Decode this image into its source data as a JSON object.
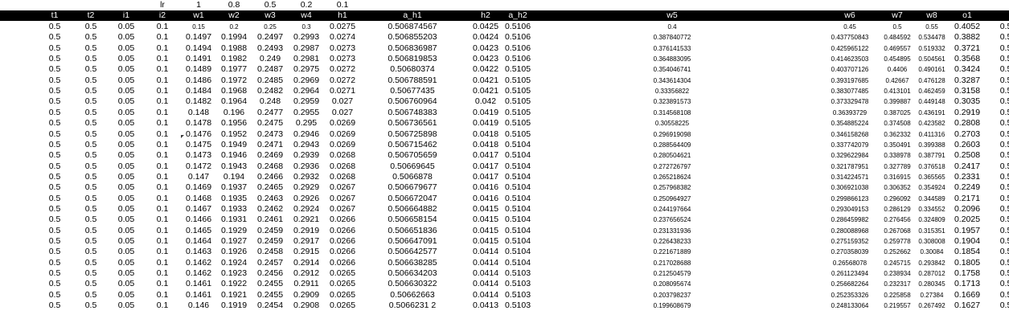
{
  "lr_row": [
    "",
    "",
    "",
    "lr",
    "1",
    "0.8",
    "0.5",
    "0.2",
    "0.1",
    "",
    "",
    "",
    "",
    "",
    "",
    "",
    ""
  ],
  "header": [
    "t1",
    "t2",
    "i1",
    "i2",
    "w1",
    "w2",
    "w3",
    "w4",
    "h1",
    "a_h1",
    "h2",
    "a_h2",
    "w5",
    "w6",
    "w7",
    "w8",
    "o1"
  ],
  "rows": [
    [
      "0.5",
      "0.5",
      "0.05",
      "0.1",
      "0.15",
      "0.2",
      "0.25",
      "0.3",
      "0.0275",
      "0.506874567",
      "0.0425",
      "0.5106",
      "0.4",
      "0.45",
      "0.5",
      "0.55",
      "0.4052"
    ],
    [
      "0.5",
      "0.5",
      "0.05",
      "0.1",
      "0.1497",
      "0.1994",
      "0.2497",
      "0.2993",
      "0.0274",
      "0.506855203",
      "0.0424",
      "0.5106",
      "0.387840772",
      "0.437750843",
      "0.484592",
      "0.534478",
      "0.3882"
    ],
    [
      "0.5",
      "0.5",
      "0.05",
      "0.1",
      "0.1494",
      "0.1988",
      "0.2493",
      "0.2987",
      "0.0273",
      "0.506836987",
      "0.0423",
      "0.5106",
      "0.376141533",
      "0.425965122",
      "0.469557",
      "0.519332",
      "0.3721"
    ],
    [
      "0.5",
      "0.5",
      "0.05",
      "0.1",
      "0.1491",
      "0.1982",
      "0.249",
      "0.2981",
      "0.0273",
      "0.506819853",
      "0.0423",
      "0.5106",
      "0.364883095",
      "0.414623503",
      "0.454895",
      "0.504561",
      "0.3568"
    ],
    [
      "0.5",
      "0.5",
      "0.05",
      "0.1",
      "0.1489",
      "0.1977",
      "0.2487",
      "0.2975",
      "0.0272",
      "0.50680374",
      "0.0422",
      "0.5105",
      "0.354046741",
      "0.403707126",
      "0.4406",
      "0.490161",
      "0.3424"
    ],
    [
      "0.5",
      "0.5",
      "0.05",
      "0.1",
      "0.1486",
      "0.1972",
      "0.2485",
      "0.2969",
      "0.0272",
      "0.506788591",
      "0.0421",
      "0.5105",
      "0.343614304",
      "0.393197685",
      "0.42667",
      "0.476128",
      "0.3287"
    ],
    [
      "0.5",
      "0.5",
      "0.05",
      "0.1",
      "0.1484",
      "0.1968",
      "0.2482",
      "0.2964",
      "0.0271",
      "0.50677435",
      "0.0421",
      "0.5105",
      "0.33356822",
      "0.383077485",
      "0.413101",
      "0.462459",
      "0.3158"
    ],
    [
      "0.5",
      "0.5",
      "0.05",
      "0.1",
      "0.1482",
      "0.1964",
      "0.248",
      "0.2959",
      "0.027",
      "0.506760964",
      "0.042",
      "0.5105",
      "0.323891573",
      "0.373329478",
      "0.399887",
      "0.449148",
      "0.3035"
    ],
    [
      "0.5",
      "0.5",
      "0.05",
      "0.1",
      "0.148",
      "0.196",
      "0.2477",
      "0.2955",
      "0.027",
      "0.506748383",
      "0.0419",
      "0.5105",
      "0.314568108",
      "0.36393729",
      "0.387025",
      "0.436191",
      "0.2919"
    ],
    [
      "0.5",
      "0.5",
      "0.05",
      "0.1",
      "0.1478",
      "0.1956",
      "0.2475",
      "0.295",
      "0.0269",
      "0.506736561",
      "0.0419",
      "0.5105",
      "0.30558225",
      "0.354885224",
      "0.374508",
      "0.423582",
      "0.2808"
    ],
    [
      "0.5",
      "0.5",
      "0.05",
      "0.1",
      "0.1476",
      "0.1952",
      "0.2473",
      "0.2946",
      "0.0269",
      "0.506725898",
      "0.0418",
      "0.5105",
      "0.296919098",
      "0.346158268",
      "0.362332",
      "0.411316",
      "0.2703"
    ],
    [
      "0.5",
      "0.5",
      "0.05",
      "0.1",
      "0.1475",
      "0.1949",
      "0.2471",
      "0.2943",
      "0.0269",
      "0.506715462",
      "0.0418",
      "0.5104",
      "0.288564409",
      "0.337742079",
      "0.350491",
      "0.399388",
      "0.2603"
    ],
    [
      "0.5",
      "0.5",
      "0.05",
      "0.1",
      "0.1473",
      "0.1946",
      "0.2469",
      "0.2939",
      "0.0268",
      "0.506705659",
      "0.0417",
      "0.5104",
      "0.280504621",
      "0.329622984",
      "0.338978",
      "0.387791",
      "0.2508"
    ],
    [
      "0.5",
      "0.5",
      "0.05",
      "0.1",
      "0.1472",
      "0.1943",
      "0.2468",
      "0.2936",
      "0.0268",
      "0.50669645",
      "0.0417",
      "0.5104",
      "0.272726797",
      "0.321787951",
      "0.327789",
      "0.376518",
      "0.2417"
    ],
    [
      "0.5",
      "0.5",
      "0.05",
      "0.1",
      "0.147",
      "0.194",
      "0.2466",
      "0.2932",
      "0.0268",
      "0.5066878",
      "0.0417",
      "0.5104",
      "0.265218624",
      "0.314224571",
      "0.316915",
      "0.365565",
      "0.2331"
    ],
    [
      "0.5",
      "0.5",
      "0.05",
      "0.1",
      "0.1469",
      "0.1937",
      "0.2465",
      "0.2929",
      "0.0267",
      "0.506679677",
      "0.0416",
      "0.5104",
      "0.257968382",
      "0.306921038",
      "0.306352",
      "0.354924",
      "0.2249"
    ],
    [
      "0.5",
      "0.5",
      "0.05",
      "0.1",
      "0.1468",
      "0.1935",
      "0.2463",
      "0.2926",
      "0.0267",
      "0.506672047",
      "0.0416",
      "0.5104",
      "0.250964927",
      "0.299866123",
      "0.296092",
      "0.344589",
      "0.2171"
    ],
    [
      "0.5",
      "0.5",
      "0.05",
      "0.1",
      "0.1467",
      "0.1933",
      "0.2462",
      "0.2924",
      "0.0267",
      "0.506664882",
      "0.0415",
      "0.5104",
      "0.244197664",
      "0.293049153",
      "0.286129",
      "0.334552",
      "0.2096"
    ],
    [
      "0.5",
      "0.5",
      "0.05",
      "0.1",
      "0.1466",
      "0.1931",
      "0.2461",
      "0.2921",
      "0.0266",
      "0.506658154",
      "0.0415",
      "0.5104",
      "0.237656524",
      "0.286459982",
      "0.276456",
      "0.324809",
      "0.2025"
    ],
    [
      "0.5",
      "0.5",
      "0.05",
      "0.1",
      "0.1465",
      "0.1929",
      "0.2459",
      "0.2919",
      "0.0266",
      "0.506651836",
      "0.0415",
      "0.5104",
      "0.231331936",
      "0.280088968",
      "0.267068",
      "0.315351",
      "0.1957"
    ],
    [
      "0.5",
      "0.5",
      "0.05",
      "0.1",
      "0.1464",
      "0.1927",
      "0.2459",
      "0.2917",
      "0.0266",
      "0.506647091",
      "0.0415",
      "0.5104",
      "0.226438233",
      "0.275159352",
      "0.259778",
      "0.308008",
      "0.1904"
    ],
    [
      "0.5",
      "0.5",
      "0.05",
      "0.1",
      "0.1463",
      "0.1926",
      "0.2458",
      "0.2915",
      "0.0266",
      "0.506642577",
      "0.0414",
      "0.5104",
      "0.221671889",
      "0.270358039",
      "0.252662",
      "0.30084",
      "0.1854"
    ],
    [
      "0.5",
      "0.5",
      "0.05",
      "0.1",
      "0.1462",
      "0.1924",
      "0.2457",
      "0.2914",
      "0.0266",
      "0.506638285",
      "0.0414",
      "0.5104",
      "0.217028688",
      "0.26568078",
      "0.245715",
      "0.293842",
      "0.1805"
    ],
    [
      "0.5",
      "0.5",
      "0.05",
      "0.1",
      "0.1462",
      "0.1923",
      "0.2456",
      "0.2912",
      "0.0265",
      "0.506634203",
      "0.0414",
      "0.5103",
      "0.212504579",
      "0.261123494",
      "0.238934",
      "0.287012",
      "0.1758"
    ],
    [
      "0.5",
      "0.5",
      "0.05",
      "0.1",
      "0.1461",
      "0.1922",
      "0.2455",
      "0.2911",
      "0.0265",
      "0.506630322",
      "0.0414",
      "0.5103",
      "0.208095674",
      "0.256682264",
      "0.232317",
      "0.280345",
      "0.1713"
    ],
    [
      "0.5",
      "0.5",
      "0.05",
      "0.1",
      "0.1461",
      "0.1921",
      "0.2455",
      "0.2909",
      "0.0265",
      "0.50662663",
      "0.0414",
      "0.5103",
      "0.203798237",
      "0.252353326",
      "0.225858",
      "0.27384",
      "0.1669"
    ],
    [
      "0.5",
      "0.5",
      "0.05",
      "0.1",
      "0.146",
      "0.1919",
      "0.2454",
      "0.2908",
      "0.0265",
      "0.5066231 2",
      "0.0413",
      "0.5103",
      "0.199608679",
      "0.248133064",
      "0.219557",
      "0.267492",
      "0.1627"
    ]
  ],
  "overflow_col": "0.5"
}
